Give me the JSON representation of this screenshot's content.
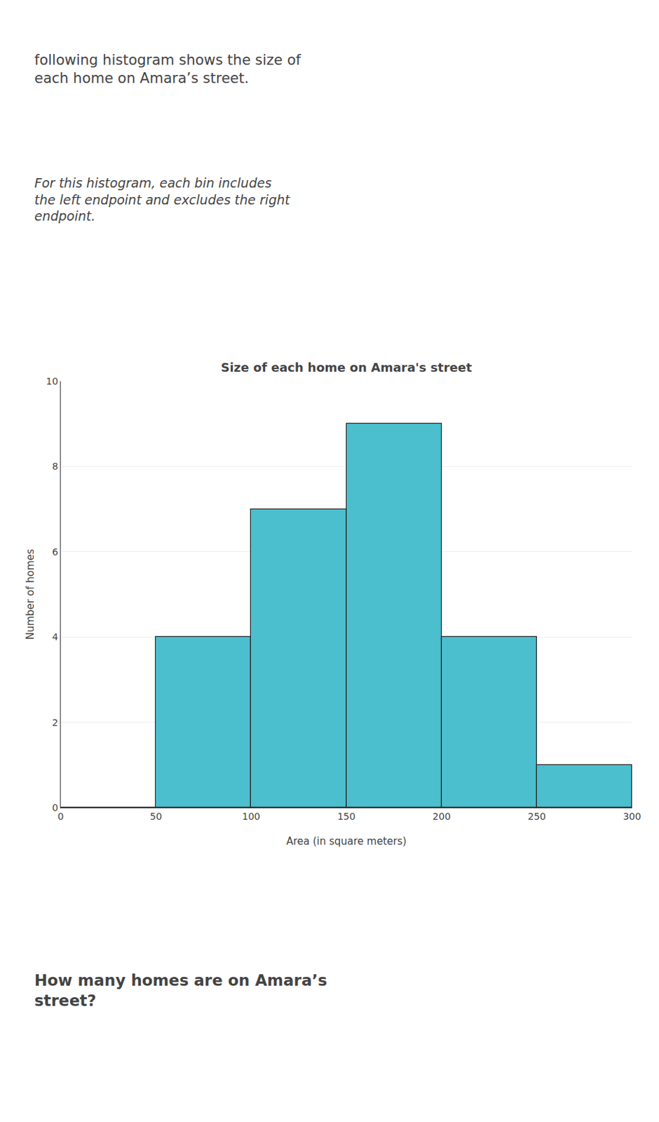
{
  "chart_data": {
    "type": "histogram",
    "title": "Size of each home on Amara's street",
    "xlabel": "Area (in square meters)",
    "ylabel": "Number of homes",
    "bins": [
      0,
      50,
      100,
      150,
      200,
      250,
      300
    ],
    "values": [
      0,
      4,
      7,
      9,
      4,
      1
    ],
    "color": "#4BBFCE",
    "xlim": [
      0,
      300
    ],
    "xticks": [
      0,
      50,
      100,
      150,
      200,
      250,
      300
    ],
    "ylim": [
      0,
      10
    ],
    "yticks": [
      0,
      2,
      4,
      6,
      8,
      10
    ],
    "grid": true,
    "annotations": [
      "following histogram shows the size of\neach home on Amara’s street.",
      "For this histogram, each bin includes\nthe left endpoint and excludes the right\nendpoint.",
      "How many homes are on Amara’s\nstreet?"
    ]
  }
}
